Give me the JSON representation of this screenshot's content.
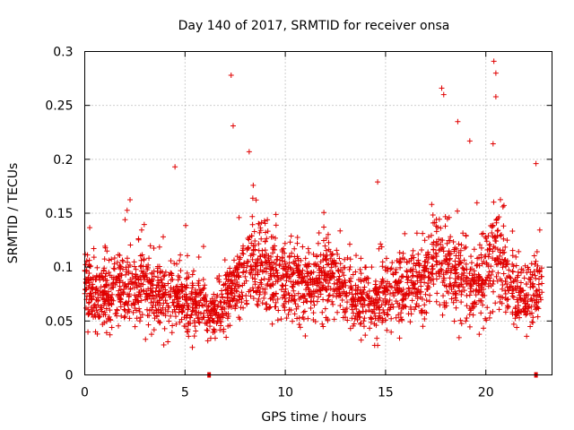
{
  "chart_data": {
    "type": "scatter",
    "title": "Day 140 of 2017, SRMTID for receiver onsa",
    "xlabel": "GPS time / hours",
    "ylabel": "SRMTID / TECUs",
    "xlim": [
      0,
      23.3
    ],
    "ylim": [
      0,
      0.3
    ],
    "grid": true,
    "marker": "+",
    "color": "#e00000",
    "x_ticks": [
      0,
      5,
      10,
      15,
      20
    ],
    "x_tick_labels": [
      "0",
      "5",
      "10",
      "15",
      "20"
    ],
    "y_ticks": [
      0,
      0.05,
      0.1,
      0.15,
      0.2,
      0.25,
      0.3
    ],
    "y_tick_labels": [
      "0",
      "0.05",
      "0.1",
      "0.15",
      "0.2",
      "0.25",
      "0.3"
    ],
    "baseline_y": 0.0,
    "zero_value_points": [
      {
        "x": 6.2,
        "y": 0.0
      },
      {
        "x": 22.5,
        "y": 0.0
      }
    ],
    "series": [
      {
        "name": "SRMTID",
        "profile_note": "approximate envelope of dense per-sample scatter read from gridlines",
        "x": [
          0.0,
          0.5,
          1.0,
          1.5,
          2.0,
          2.5,
          3.0,
          3.5,
          4.0,
          4.5,
          5.0,
          5.5,
          6.0,
          6.5,
          7.0,
          7.5,
          8.0,
          8.5,
          9.0,
          9.5,
          10.0,
          10.5,
          11.0,
          11.5,
          12.0,
          12.5,
          13.0,
          13.5,
          14.0,
          14.5,
          15.0,
          15.5,
          16.0,
          16.5,
          17.0,
          17.5,
          18.0,
          18.5,
          19.0,
          19.5,
          20.0,
          20.5,
          21.0,
          21.5,
          22.0,
          22.5,
          22.8
        ],
        "median": [
          0.085,
          0.07,
          0.075,
          0.078,
          0.08,
          0.085,
          0.08,
          0.075,
          0.078,
          0.075,
          0.07,
          0.065,
          0.062,
          0.055,
          0.07,
          0.085,
          0.095,
          0.1,
          0.1,
          0.09,
          0.085,
          0.085,
          0.082,
          0.085,
          0.09,
          0.085,
          0.075,
          0.07,
          0.065,
          0.07,
          0.075,
          0.08,
          0.08,
          0.085,
          0.09,
          0.11,
          0.1,
          0.09,
          0.085,
          0.08,
          0.09,
          0.12,
          0.085,
          0.075,
          0.07,
          0.08,
          0.09
        ],
        "spread": [
          0.03,
          0.025,
          0.03,
          0.032,
          0.035,
          0.035,
          0.032,
          0.032,
          0.035,
          0.03,
          0.028,
          0.026,
          0.024,
          0.02,
          0.026,
          0.03,
          0.035,
          0.035,
          0.035,
          0.03,
          0.03,
          0.03,
          0.03,
          0.03,
          0.032,
          0.032,
          0.03,
          0.028,
          0.025,
          0.028,
          0.03,
          0.03,
          0.032,
          0.032,
          0.035,
          0.04,
          0.045,
          0.04,
          0.035,
          0.035,
          0.04,
          0.045,
          0.03,
          0.028,
          0.025,
          0.03,
          0.03
        ]
      }
    ],
    "notable_peaks": [
      {
        "x": 4.5,
        "y": 0.193
      },
      {
        "x": 7.3,
        "y": 0.278
      },
      {
        "x": 7.4,
        "y": 0.231
      },
      {
        "x": 8.2,
        "y": 0.207
      },
      {
        "x": 17.8,
        "y": 0.266
      },
      {
        "x": 17.9,
        "y": 0.26
      },
      {
        "x": 18.6,
        "y": 0.235
      },
      {
        "x": 19.2,
        "y": 0.217
      },
      {
        "x": 20.4,
        "y": 0.291
      },
      {
        "x": 20.5,
        "y": 0.28
      },
      {
        "x": 20.5,
        "y": 0.258
      },
      {
        "x": 22.5,
        "y": 0.196
      }
    ],
    "point_count_estimate": 2600
  }
}
